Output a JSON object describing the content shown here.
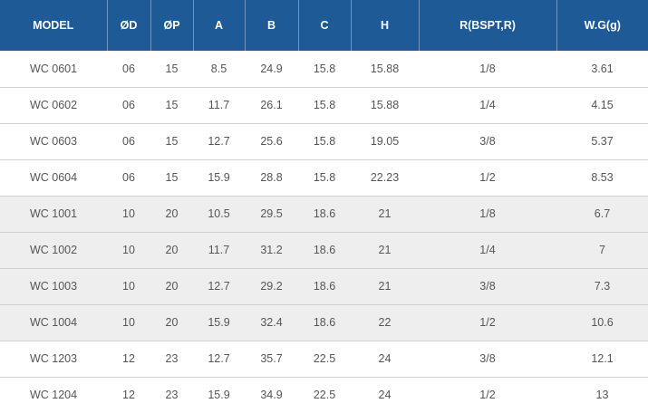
{
  "table": {
    "headers": [
      "MODEL",
      "ØD",
      "ØP",
      "A",
      "B",
      "C",
      "H",
      "R(BSPT,R)",
      "W.G(g)"
    ],
    "rows": [
      {
        "shaded": false,
        "cells": [
          "WC 0601",
          "06",
          "15",
          "8.5",
          "24.9",
          "15.8",
          "15.88",
          "1/8",
          "3.61"
        ]
      },
      {
        "shaded": false,
        "cells": [
          "WC 0602",
          "06",
          "15",
          "11.7",
          "26.1",
          "15.8",
          "15.88",
          "1/4",
          "4.15"
        ]
      },
      {
        "shaded": false,
        "cells": [
          "WC 0603",
          "06",
          "15",
          "12.7",
          "25.6",
          "15.8",
          "19.05",
          "3/8",
          "5.37"
        ]
      },
      {
        "shaded": false,
        "cells": [
          "WC 0604",
          "06",
          "15",
          "15.9",
          "28.8",
          "15.8",
          "22.23",
          "1/2",
          "8.53"
        ]
      },
      {
        "shaded": true,
        "cells": [
          "WC 1001",
          "10",
          "20",
          "10.5",
          "29.5",
          "18.6",
          "21",
          "1/8",
          "6.7"
        ]
      },
      {
        "shaded": true,
        "cells": [
          "WC 1002",
          "10",
          "20",
          "11.7",
          "31.2",
          "18.6",
          "21",
          "1/4",
          "7"
        ]
      },
      {
        "shaded": true,
        "cells": [
          "WC 1003",
          "10",
          "20",
          "12.7",
          "29.2",
          "18.6",
          "21",
          "3/8",
          "7.3"
        ]
      },
      {
        "shaded": true,
        "cells": [
          "WC 1004",
          "10",
          "20",
          "15.9",
          "32.4",
          "18.6",
          "22",
          "1/2",
          "10.6"
        ]
      },
      {
        "shaded": false,
        "cells": [
          "WC 1203",
          "12",
          "23",
          "12.7",
          "35.7",
          "22.5",
          "24",
          "3/8",
          "12.1"
        ]
      },
      {
        "shaded": false,
        "cells": [
          "WC 1204",
          "12",
          "23",
          "15.9",
          "34.9",
          "22.5",
          "24",
          "1/2",
          "13"
        ]
      }
    ]
  },
  "colors": {
    "header_bg": "#1d5a96",
    "header_text": "#ffffff",
    "shaded_row_bg": "#eeeeee",
    "cell_text": "#555555"
  }
}
